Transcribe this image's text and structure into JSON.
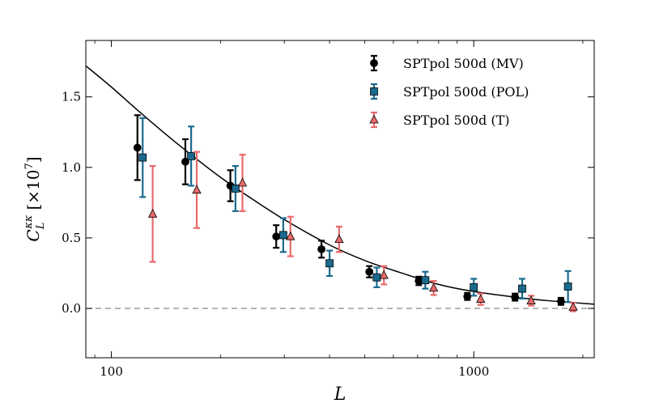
{
  "chart_data": {
    "type": "scatter",
    "title": "",
    "xlabel": "L",
    "ylabel": "C_L^{κκ} [×10^7]",
    "ylabel_main": "C",
    "ylabel_sub": "L",
    "ylabel_sup": "κκ",
    "ylabel_unit_open": "[×10",
    "ylabel_unit_exp": "7",
    "ylabel_unit_close": "]",
    "xscale": "log",
    "xlim": [
      85,
      2150
    ],
    "ylim": [
      -0.35,
      1.9
    ],
    "x_ticks": [
      {
        "value": 100,
        "label": "100"
      },
      {
        "value": 1000,
        "label": "1000"
      }
    ],
    "y_ticks": [
      {
        "value": 0.0,
        "label": "0.0"
      },
      {
        "value": 0.5,
        "label": "0.5"
      },
      {
        "value": 1.0,
        "label": "1.0"
      },
      {
        "value": 1.5,
        "label": "1.5"
      }
    ],
    "legend_position": "top-right",
    "zero_line": {
      "value": 0.0,
      "style": "dashed",
      "color": "#888888"
    },
    "theory_curve": {
      "name": "theory",
      "color": "#000000",
      "x": [
        85,
        100,
        120,
        150,
        200,
        250,
        300,
        400,
        500,
        600,
        800,
        1000,
        1300,
        1600,
        2150
      ],
      "y": [
        1.72,
        1.57,
        1.39,
        1.18,
        0.93,
        0.76,
        0.63,
        0.45,
        0.34,
        0.27,
        0.17,
        0.12,
        0.08,
        0.055,
        0.03
      ]
    },
    "series": [
      {
        "name": "SPTpol 500d (MV)",
        "color": "#000000",
        "marker": "circle",
        "x": [
          118,
          160,
          213,
          285,
          380,
          515,
          705,
          960,
          1300,
          1740
        ],
        "y": [
          1.14,
          1.04,
          0.87,
          0.51,
          0.42,
          0.26,
          0.195,
          0.085,
          0.08,
          0.05
        ],
        "err": [
          0.23,
          0.16,
          0.11,
          0.08,
          0.06,
          0.04,
          0.03,
          0.025,
          0.025,
          0.025
        ]
      },
      {
        "name": "SPTpol 500d (POL)",
        "color": "#1a6a8e",
        "marker": "square",
        "x": [
          122,
          166,
          220,
          298,
          400,
          540,
          735,
          1000,
          1360,
          1820
        ],
        "y": [
          1.07,
          1.08,
          0.85,
          0.52,
          0.32,
          0.22,
          0.2,
          0.15,
          0.14,
          0.155
        ],
        "err": [
          0.28,
          0.21,
          0.16,
          0.12,
          0.09,
          0.07,
          0.06,
          0.06,
          0.07,
          0.11
        ]
      },
      {
        "name": "SPTpol 500d (T)",
        "color": "#e86a6a",
        "marker": "triangle",
        "x": [
          130,
          172,
          230,
          312,
          425,
          565,
          775,
          1045,
          1440,
          1880
        ],
        "y": [
          0.67,
          0.84,
          0.89,
          0.51,
          0.49,
          0.235,
          0.145,
          0.065,
          0.055,
          0.01
        ],
        "err": [
          0.34,
          0.27,
          0.2,
          0.14,
          0.09,
          0.065,
          0.05,
          0.04,
          0.035,
          0.03
        ]
      }
    ]
  }
}
